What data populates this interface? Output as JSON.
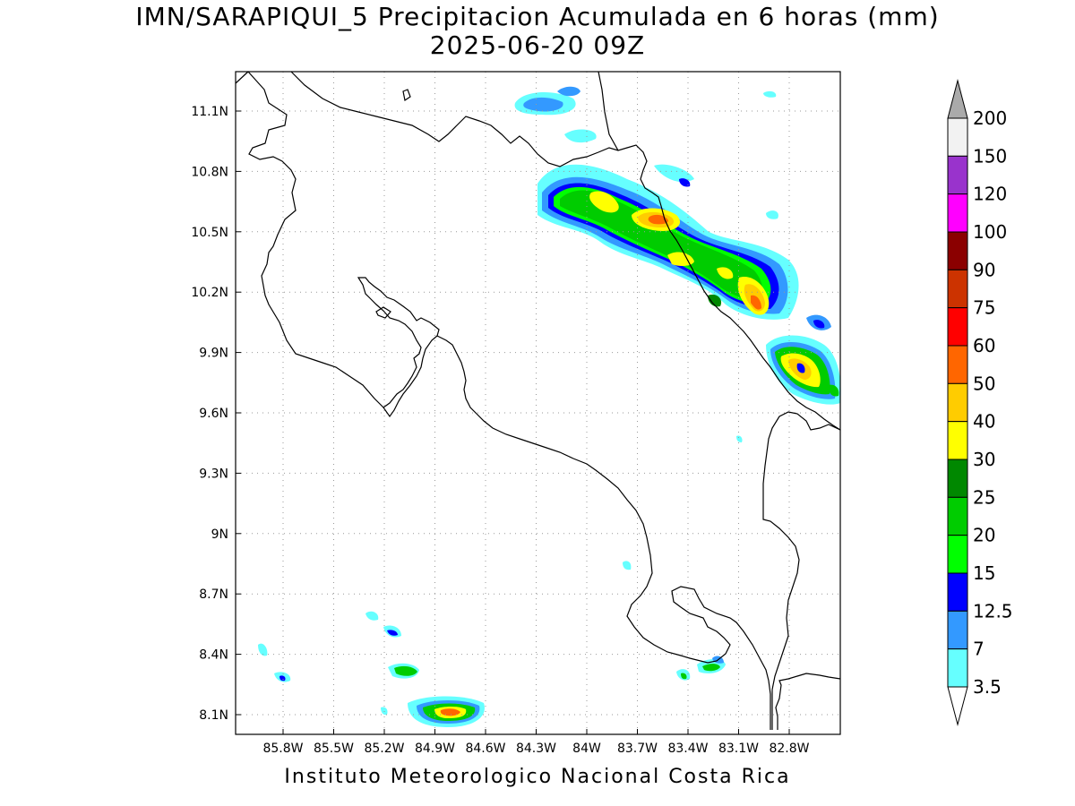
{
  "title": {
    "line1": "IMN/SARAPIQUI_5 Precipitacion Acumulada en 6 horas (mm)",
    "line2": "2025-06-20 09Z"
  },
  "footer": "Instituto Meteorologico Nacional Costa Rica",
  "map": {
    "lon_ticks": [
      "85.8W",
      "85.5W",
      "85.2W",
      "84.9W",
      "84.6W",
      "84.3W",
      "84W",
      "83.7W",
      "83.4W",
      "83.1W",
      "82.8W"
    ],
    "lat_ticks": [
      "11.1N",
      "10.8N",
      "10.5N",
      "10.2N",
      "9.9N",
      "9.6N",
      "9.3N",
      "9N",
      "8.7N",
      "8.4N",
      "8.1N"
    ],
    "grid": "dotted"
  },
  "legend": {
    "labels": [
      "200",
      "150",
      "120",
      "100",
      "90",
      "75",
      "60",
      "50",
      "40",
      "30",
      "25",
      "20",
      "15",
      "12.5",
      "7",
      "3.5"
    ],
    "colors": [
      "#f2f2f2",
      "#9933cc",
      "#ff00ff",
      "#8b0000",
      "#cc3300",
      "#ff0000",
      "#ff6600",
      "#ffcc00",
      "#ffff00",
      "#008800",
      "#00cc00",
      "#00ff00",
      "#0000ff",
      "#3399ff",
      "#66ffff"
    ],
    "top_arrow_color": "#aaaaaa",
    "bottom_arrow_color": "#ffffff"
  }
}
